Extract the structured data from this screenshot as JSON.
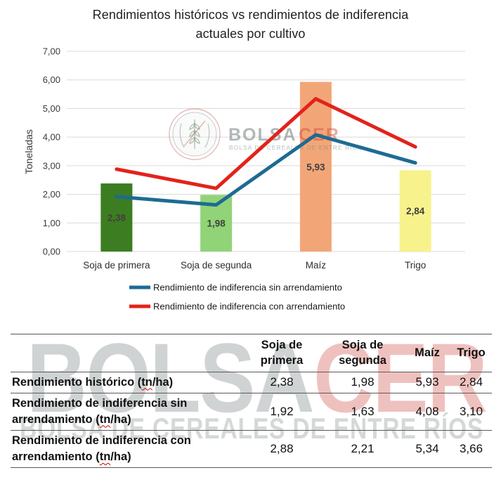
{
  "chart": {
    "title": "Rendimientos históricos vs rendimientos de indiferencia actuales por cultivo"
  },
  "chart_data": {
    "type": "combo-bar-line",
    "title": "Rendimientos históricos vs rendimientos de indiferencia actuales por cultivo",
    "ylabel": "Toneladas",
    "xlabel": "",
    "ylim": [
      0,
      7
    ],
    "ytick_step": 1,
    "ytick_labels": [
      "0,00",
      "1,00",
      "2,00",
      "3,00",
      "4,00",
      "5,00",
      "6,00",
      "7,00"
    ],
    "grid": true,
    "legend_position": "bottom",
    "categories": [
      "Soja de primera",
      "Soja de segunda",
      "Maíz",
      "Trigo"
    ],
    "bar_series": {
      "name": "Rendimiento histórico (tn/ha)",
      "values": [
        2.38,
        1.98,
        5.93,
        2.84
      ],
      "labels": [
        "2,38",
        "1,98",
        "5,93",
        "2,84"
      ],
      "colors": [
        "#3c7d21",
        "#90d477",
        "#f2a678",
        "#f8f28c"
      ],
      "label_color": "#404040"
    },
    "line_series": [
      {
        "name": "Rendimiento de indiferencia sin arrendamiento",
        "values": [
          1.92,
          1.63,
          4.08,
          3.1
        ],
        "color": "#1d6b93"
      },
      {
        "name": "Rendimiento de indiferencia con arrendamiento",
        "values": [
          2.88,
          2.21,
          5.34,
          3.66
        ],
        "color": "#e2231a"
      }
    ]
  },
  "watermark": {
    "brand_gray": "BOLSA",
    "brand_red": "CER",
    "subtitle": "BOLSA DE CEREALES DE ENTRE RÍOS"
  },
  "table": {
    "columns": [
      "Soja de primera",
      "Soja de segunda",
      "Maíz",
      "Trigo"
    ],
    "rows": [
      {
        "label_pre": "Rendimiento histórico (",
        "label_misspelled": "tn",
        "label_post": "/ha)",
        "values": [
          "2,38",
          "1,98",
          "5,93",
          "2,84"
        ]
      },
      {
        "label_pre": "Rendimiento de indiferencia sin arrendamiento (",
        "label_misspelled": "tn",
        "label_post": "/ha)",
        "values": [
          "1,92",
          "1,63",
          "4,08",
          "3,10"
        ]
      },
      {
        "label_pre": "Rendimiento de indiferencia con arrendamiento (",
        "label_misspelled": "tn",
        "label_post": "/ha)",
        "values": [
          "2,88",
          "2,21",
          "5,34",
          "3,66"
        ]
      }
    ]
  },
  "colors": {
    "gridline": "#d9d9d9",
    "axis_text": "#3a3a3a",
    "title_text": "#1f1f1f",
    "table_border": "#595959",
    "spellcheck": "#d40000"
  }
}
